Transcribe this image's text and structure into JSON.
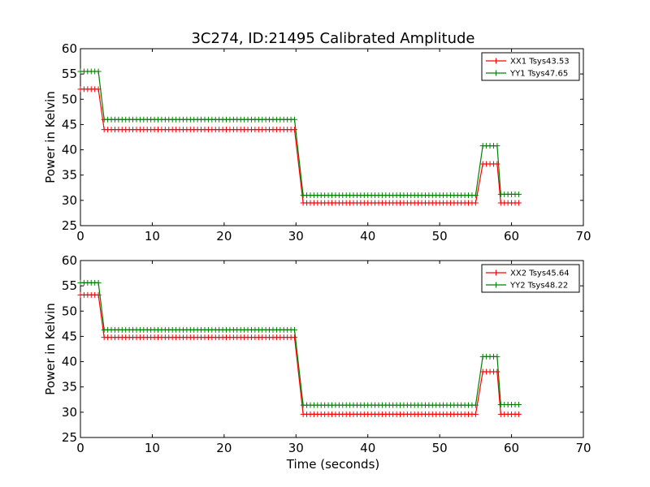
{
  "chart_data": [
    {
      "type": "line",
      "title": "3C274, ID:21495 Calibrated Amplitude",
      "xlabel": "",
      "ylabel": "Power in Kelvin",
      "xlim": [
        0,
        70
      ],
      "ylim": [
        25,
        60
      ],
      "xticks": [
        "0",
        "10",
        "20",
        "30",
        "40",
        "50",
        "60",
        "70"
      ],
      "yticks": [
        "25",
        "30",
        "35",
        "40",
        "45",
        "50",
        "55",
        "60"
      ],
      "grid": false,
      "legend": "top-right",
      "series": [
        {
          "name": "XX1 Tsys43.53",
          "color": "#ff0000",
          "segments": [
            {
              "x0": 0,
              "x1": 2.5,
              "y": 52.0
            },
            {
              "x0": 3.3,
              "x1": 30.0,
              "y": 44.0
            },
            {
              "x0": 31.0,
              "x1": 55.0,
              "y": 29.5
            },
            {
              "x0": 56.0,
              "x1": 58.0,
              "y": 37.2
            },
            {
              "x0": 58.5,
              "x1": 61.0,
              "y": 29.5
            }
          ]
        },
        {
          "name": "YY1 Tsys47.65",
          "color": "#008000",
          "segments": [
            {
              "x0": 0,
              "x1": 2.5,
              "y": 55.5
            },
            {
              "x0": 3.3,
              "x1": 30.0,
              "y": 46.0
            },
            {
              "x0": 31.0,
              "x1": 55.0,
              "y": 31.0
            },
            {
              "x0": 56.0,
              "x1": 58.0,
              "y": 40.8
            },
            {
              "x0": 58.5,
              "x1": 61.0,
              "y": 31.2
            }
          ]
        }
      ]
    },
    {
      "type": "line",
      "title": "",
      "xlabel": "Time (seconds)",
      "ylabel": "Power in Kelvin",
      "xlim": [
        0,
        70
      ],
      "ylim": [
        25,
        60
      ],
      "xticks": [
        "0",
        "10",
        "20",
        "30",
        "40",
        "50",
        "60",
        "70"
      ],
      "yticks": [
        "25",
        "30",
        "35",
        "40",
        "45",
        "50",
        "55",
        "60"
      ],
      "grid": false,
      "legend": "top-right",
      "series": [
        {
          "name": "XX2 Tsys45.64",
          "color": "#ff0000",
          "segments": [
            {
              "x0": 0,
              "x1": 2.5,
              "y": 53.2
            },
            {
              "x0": 3.3,
              "x1": 30.0,
              "y": 44.8
            },
            {
              "x0": 31.0,
              "x1": 55.0,
              "y": 29.6
            },
            {
              "x0": 56.0,
              "x1": 58.0,
              "y": 38.0
            },
            {
              "x0": 58.5,
              "x1": 61.0,
              "y": 29.6
            }
          ]
        },
        {
          "name": "YY2 Tsys48.22",
          "color": "#008000",
          "segments": [
            {
              "x0": 0,
              "x1": 2.5,
              "y": 55.6
            },
            {
              "x0": 3.3,
              "x1": 30.0,
              "y": 46.3
            },
            {
              "x0": 31.0,
              "x1": 55.0,
              "y": 31.4
            },
            {
              "x0": 56.0,
              "x1": 58.0,
              "y": 41.0
            },
            {
              "x0": 58.5,
              "x1": 61.0,
              "y": 31.5
            }
          ]
        }
      ]
    }
  ]
}
